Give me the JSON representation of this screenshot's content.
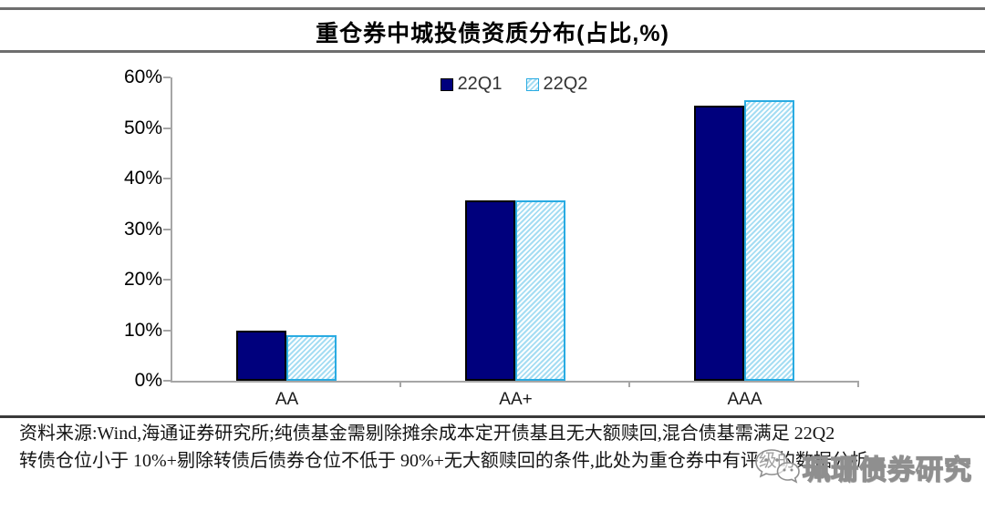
{
  "title": "重仓券中城投债资质分布(占比,%)",
  "chart_data": {
    "type": "bar",
    "title": "重仓券中城投债资质分布(占比,%)",
    "categories": [
      "AA",
      "AA+",
      "AAA"
    ],
    "series": [
      {
        "name": "22Q1",
        "values": [
          10.0,
          35.7,
          54.5
        ],
        "color": "#00007d",
        "border": "#000000",
        "style": "solid"
      },
      {
        "name": "22Q2",
        "values": [
          9.0,
          35.6,
          55.5
        ],
        "color": "#29abe2",
        "hatch_color": "#a5ddf3",
        "style": "hatched"
      }
    ],
    "xlabel": "",
    "ylabel": "",
    "ylim": [
      0,
      60
    ],
    "yticks": [
      "60%",
      "50%",
      "40%",
      "30%",
      "20%",
      "10%",
      "0%"
    ],
    "grid": false,
    "legend_position": "top-center"
  },
  "footer": {
    "line1": "资料来源:Wind,海通证券研究所;纯债基金需剔除摊余成本定开债基且无大额赎回,混合债基需满足 22Q2",
    "line2": "转债仓位小于 10%+剔除转债后债券仓位不低于 90%+无大额赎回的条件,此处为重仓券中有评级的数据分析。"
  },
  "watermark": {
    "text": "珮珊债券研究",
    "icon": "wechat-icon"
  },
  "colors": {
    "q1_bar": "#00007d",
    "q2_border": "#29abe2",
    "q2_hatch": "#a5ddf3",
    "axis": "#a6a6a6",
    "divider": "#6e6e6e"
  }
}
